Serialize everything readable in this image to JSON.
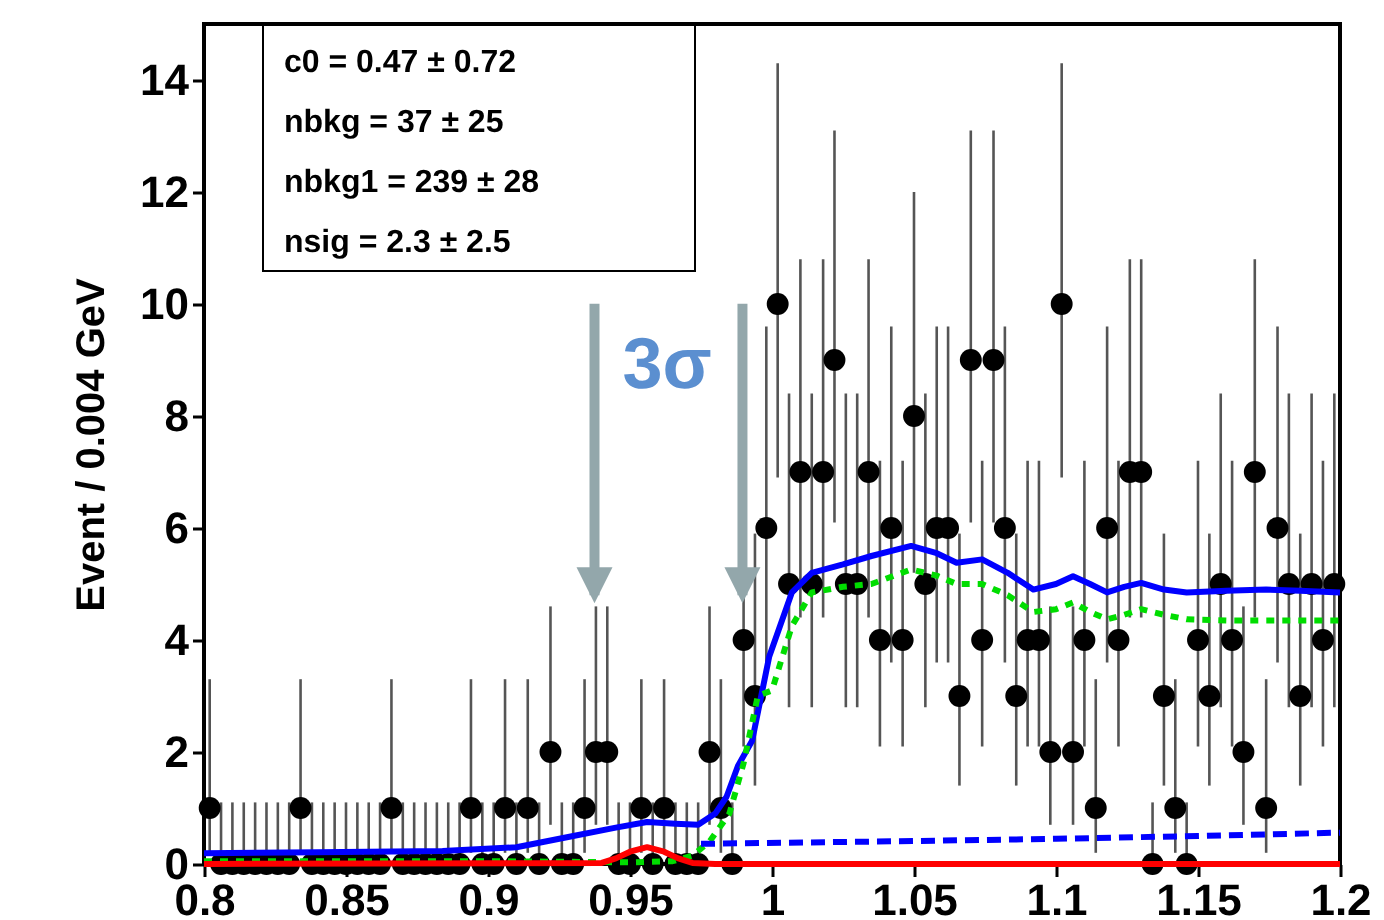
{
  "chart_data": {
    "type": "scatter",
    "ylabel": "Event / 0.004 GeV",
    "xlim": [
      0.8,
      1.2
    ],
    "xticks": [
      {
        "value": 0.8,
        "label": "0.8"
      },
      0.85,
      {
        "value": 0.9,
        "label": "0.9"
      },
      0.95,
      {
        "value": 1,
        "label": "1"
      },
      1.05,
      {
        "value": 1.1,
        "label": "1.1"
      },
      1.15,
      {
        "value": 1.2,
        "label": "1.2"
      }
    ],
    "ylim": [
      0,
      15
    ],
    "yticks": [
      0,
      2,
      4,
      6,
      8,
      10,
      12,
      14
    ],
    "grid": false,
    "annotations": [
      "c0 =  0.47 ± 0.72",
      "nbkg =  37 ± 25",
      "nbkg1 =  239 ± 28",
      "nsig =  2.3 ± 2.5"
    ],
    "ref_lines": [
      {
        "axis": "x",
        "value": 0.9375,
        "color": "#93a7ab",
        "label": "3σ"
      },
      {
        "axis": "x",
        "value": 0.9896,
        "color": "#93a7ab"
      }
    ],
    "series": [
      {
        "color": "#000000",
        "marker": "circle",
        "x": [
          0.802,
          0.806,
          0.81,
          0.814,
          0.818,
          0.822,
          0.826,
          0.83,
          0.834,
          0.838,
          0.842,
          0.846,
          0.85,
          0.854,
          0.858,
          0.862,
          0.866,
          0.87,
          0.874,
          0.878,
          0.882,
          0.886,
          0.89,
          0.894,
          0.898,
          0.902,
          0.906,
          0.91,
          0.914,
          0.918,
          0.922,
          0.926,
          0.93,
          0.934,
          0.938,
          0.942,
          0.946,
          0.95,
          0.954,
          0.958,
          0.962,
          0.966,
          0.97,
          0.974,
          0.978,
          0.982,
          0.986,
          0.99,
          0.994,
          0.998,
          1.002,
          1.006,
          1.01,
          1.014,
          1.018,
          1.022,
          1.026,
          1.03,
          1.034,
          1.038,
          1.042,
          1.046,
          1.05,
          1.054,
          1.058,
          1.062,
          1.066,
          1.07,
          1.074,
          1.078,
          1.082,
          1.086,
          1.09,
          1.094,
          1.098,
          1.102,
          1.106,
          1.11,
          1.114,
          1.118,
          1.122,
          1.126,
          1.13,
          1.134,
          1.138,
          1.142,
          1.146,
          1.15,
          1.154,
          1.158,
          1.162,
          1.166,
          1.17,
          1.174,
          1.178,
          1.182,
          1.186,
          1.19,
          1.194,
          1.198
        ],
        "values": [
          1,
          0,
          0,
          0,
          0,
          0,
          0,
          0,
          1,
          0,
          0,
          0,
          0,
          0,
          0,
          0,
          1,
          0,
          0,
          0,
          0,
          0,
          0,
          1,
          0,
          0,
          1,
          0,
          1,
          0,
          2,
          0,
          0,
          1,
          2,
          2,
          0,
          0,
          1,
          0,
          1,
          0,
          0,
          0,
          2,
          1,
          0,
          4,
          3,
          6,
          10,
          5,
          7,
          5,
          7,
          9,
          5,
          5,
          7,
          4,
          6,
          4,
          8,
          5,
          6,
          6,
          3,
          9,
          4,
          9,
          6,
          3,
          4,
          4,
          2,
          10,
          2,
          4,
          1,
          6,
          4,
          7,
          7,
          0,
          3,
          1,
          0,
          4,
          3,
          5,
          4,
          2,
          7,
          1,
          6,
          5,
          3,
          5,
          4,
          5
        ],
        "errors": [
          [
            0.2,
            3.3
          ],
          [
            0,
            1.1
          ],
          [
            0,
            1.1
          ],
          [
            0,
            1.1
          ],
          [
            0,
            1.1
          ],
          [
            0,
            1.1
          ],
          [
            0,
            1.1
          ],
          [
            0,
            1.1
          ],
          [
            0.2,
            3.3
          ],
          [
            0,
            1.1
          ],
          [
            0,
            1.1
          ],
          [
            0,
            1.1
          ],
          [
            0,
            1.1
          ],
          [
            0,
            1.1
          ],
          [
            0,
            1.1
          ],
          [
            0,
            1.1
          ],
          [
            0.2,
            3.3
          ],
          [
            0,
            1.1
          ],
          [
            0,
            1.1
          ],
          [
            0,
            1.1
          ],
          [
            0,
            1.1
          ],
          [
            0,
            1.1
          ],
          [
            0,
            1.1
          ],
          [
            0.2,
            3.3
          ],
          [
            0,
            1.1
          ],
          [
            0,
            1.1
          ],
          [
            0.2,
            3.3
          ],
          [
            0,
            1.1
          ],
          [
            0.2,
            3.3
          ],
          [
            0,
            1.1
          ],
          [
            0.7,
            4.6
          ],
          [
            0,
            1.1
          ],
          [
            0,
            1.1
          ],
          [
            0.2,
            3.3
          ],
          [
            0.7,
            4.6
          ],
          [
            0.7,
            4.6
          ],
          [
            0,
            1.1
          ],
          [
            0,
            1.1
          ],
          [
            0.2,
            3.3
          ],
          [
            0,
            1.1
          ],
          [
            0.2,
            3.3
          ],
          [
            0,
            1.1
          ],
          [
            0,
            1.1
          ],
          [
            0,
            1.1
          ],
          [
            0.7,
            4.6
          ],
          [
            0.2,
            3.3
          ],
          [
            0,
            1.1
          ],
          [
            2.1,
            7.2
          ],
          [
            1.4,
            5.9
          ],
          [
            3.6,
            9.6
          ],
          [
            6.9,
            14.3
          ],
          [
            2.8,
            8.4
          ],
          [
            4.4,
            10.8
          ],
          [
            2.8,
            8.4
          ],
          [
            4.4,
            10.8
          ],
          [
            6.1,
            13.1
          ],
          [
            2.8,
            8.4
          ],
          [
            2.8,
            8.4
          ],
          [
            4.4,
            10.8
          ],
          [
            2.1,
            7.2
          ],
          [
            3.6,
            9.6
          ],
          [
            2.1,
            7.2
          ],
          [
            5.2,
            12.0
          ],
          [
            2.8,
            8.4
          ],
          [
            3.6,
            9.6
          ],
          [
            3.6,
            9.6
          ],
          [
            1.4,
            5.9
          ],
          [
            6.1,
            13.1
          ],
          [
            2.1,
            7.2
          ],
          [
            6.1,
            13.1
          ],
          [
            3.6,
            9.6
          ],
          [
            1.4,
            5.9
          ],
          [
            2.1,
            7.2
          ],
          [
            2.1,
            7.2
          ],
          [
            0.7,
            4.6
          ],
          [
            6.9,
            14.3
          ],
          [
            0.7,
            4.6
          ],
          [
            2.1,
            7.2
          ],
          [
            0.2,
            3.3
          ],
          [
            3.6,
            9.6
          ],
          [
            2.1,
            7.2
          ],
          [
            4.4,
            10.8
          ],
          [
            4.4,
            10.8
          ],
          [
            0,
            1.1
          ],
          [
            1.4,
            5.9
          ],
          [
            0.2,
            3.3
          ],
          [
            0,
            1.1
          ],
          [
            2.1,
            7.2
          ],
          [
            1.4,
            5.9
          ],
          [
            2.8,
            8.4
          ],
          [
            2.1,
            7.2
          ],
          [
            0.7,
            4.6
          ],
          [
            4.4,
            10.8
          ],
          [
            0.2,
            3.3
          ],
          [
            3.6,
            9.6
          ],
          [
            2.8,
            8.4
          ],
          [
            1.4,
            5.9
          ],
          [
            2.8,
            8.4
          ],
          [
            2.1,
            7.2
          ],
          [
            2.8,
            8.4
          ]
        ]
      },
      {
        "type": "line",
        "color": "#0000ff",
        "line_style": "solid",
        "x": [
          0.8,
          0.84,
          0.884,
          0.91,
          0.93,
          0.945,
          0.956,
          0.966,
          0.974,
          0.98,
          0.984,
          0.988,
          0.993,
          0.999,
          1.007,
          1.014,
          1.025,
          1.035,
          1.049,
          1.058,
          1.065,
          1.074,
          1.083,
          1.092,
          1.1,
          1.106,
          1.112,
          1.118,
          1.124,
          1.13,
          1.138,
          1.146,
          1.16,
          1.174,
          1.186,
          1.2
        ],
        "values": [
          0.19,
          0.21,
          0.23,
          0.3,
          0.5,
          0.65,
          0.75,
          0.72,
          0.7,
          0.9,
          1.2,
          1.75,
          2.2,
          3.7,
          4.85,
          5.2,
          5.35,
          5.5,
          5.68,
          5.55,
          5.38,
          5.44,
          5.2,
          4.9,
          5.0,
          5.14,
          5.0,
          4.85,
          4.95,
          5.02,
          4.9,
          4.85,
          4.88,
          4.9,
          4.88,
          4.85
        ]
      },
      {
        "type": "line",
        "color": "#00dd00",
        "line_style": "dotted",
        "x": [
          0.8,
          0.9,
          0.95,
          0.965,
          0.972,
          0.978,
          0.985,
          0.99,
          0.995,
          1.0,
          1.007,
          1.014,
          1.025,
          1.035,
          1.049,
          1.058,
          1.065,
          1.074,
          1.083,
          1.092,
          1.1,
          1.106,
          1.112,
          1.118,
          1.124,
          1.13,
          1.138,
          1.146,
          1.16,
          1.174,
          1.186,
          1.2
        ],
        "values": [
          0.05,
          0.05,
          0.03,
          0.05,
          0.15,
          0.4,
          0.9,
          1.8,
          3.0,
          3.1,
          4.25,
          4.85,
          4.95,
          5.0,
          5.26,
          5.15,
          5.0,
          5.0,
          4.8,
          4.5,
          4.55,
          4.67,
          4.5,
          4.37,
          4.45,
          4.55,
          4.45,
          4.37,
          4.35,
          4.35,
          4.35,
          4.35
        ]
      },
      {
        "type": "line",
        "color": "#0000ff",
        "line_style": "dashed",
        "x": [
          0.975,
          1.05,
          1.1,
          1.15,
          1.2
        ],
        "values": [
          0.36,
          0.41,
          0.45,
          0.5,
          0.56
        ]
      },
      {
        "type": "line",
        "color": "#ff0000",
        "line_style": "solid",
        "x": [
          0.8,
          0.94,
          0.945,
          0.95,
          0.956,
          0.962,
          0.967,
          0.972,
          0.98,
          1.2
        ],
        "values": [
          0,
          0.02,
          0.1,
          0.22,
          0.3,
          0.22,
          0.1,
          0.02,
          0,
          0
        ]
      }
    ]
  }
}
